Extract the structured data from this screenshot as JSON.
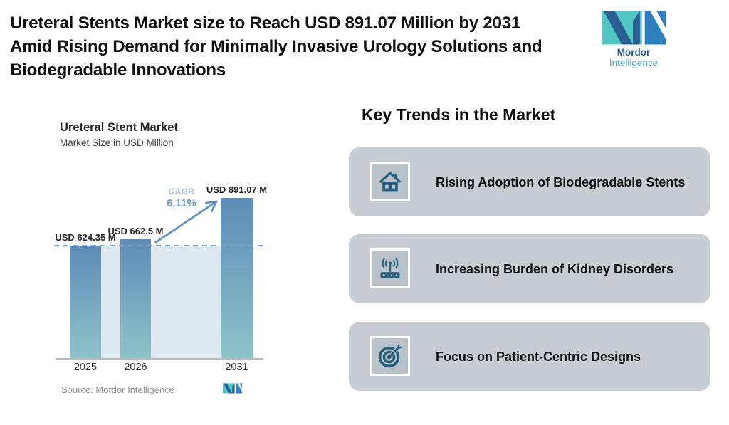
{
  "header": {
    "title_lines": [
      "Ureteral Stents Market size to Reach USD 891.07 Million by 2031",
      "Amid Rising Demand for Minimally Invasive Urology Solutions and",
      "Biodegradable Innovations"
    ],
    "brand": {
      "name_bold": "Mordor",
      "name_light": "Intelligence"
    }
  },
  "chart_data": {
    "type": "bar",
    "title": "Ureteral Stent Market",
    "subtitle": "Market Size in USD Million",
    "categories": [
      "2025",
      "2026",
      "2031"
    ],
    "values": [
      624.35,
      662.5,
      891.07
    ],
    "value_labels": [
      "USD 624.35 M",
      "USD 662.5 M",
      "USD 891.07 M"
    ],
    "cagr_label": "CAGR",
    "cagr_value": "6.11%",
    "baseline_dashed_at": 624.35,
    "ylim": [
      0,
      950
    ],
    "grid": false,
    "legend": "none",
    "source": "Source: Mordor Intelligence"
  },
  "key_trends": {
    "heading": "Key Trends in the Market",
    "cards": [
      {
        "icon": "house-icon",
        "label": "Rising Adoption of Biodegradable Stents"
      },
      {
        "icon": "router-antenna-icon",
        "label": "Increasing Burden of Kidney Disorders"
      },
      {
        "icon": "target-arrow-icon",
        "label": "Focus on Patient-Centric Designs"
      }
    ]
  },
  "colors": {
    "bar_gradient_top": "#5e8cb8",
    "bar_gradient_bottom": "#8ec2c8",
    "plot_background": "#dde8f1",
    "dashed_line": "#7aa3cc",
    "arrow": "#5b8cc2",
    "cagr_label": "#a3c2de",
    "cagr_value": "#6f9cc9",
    "card_background": "#c8cdd3",
    "icon_tile_background": "#b9c2c9",
    "icon_color": "#27607f",
    "logo_teal": "#52c6c2",
    "logo_blue": "#2e80bf",
    "logo_navy": "#2b5f93",
    "logo_light_blue": "#4a9fd0",
    "source_text": "#8d9297"
  }
}
